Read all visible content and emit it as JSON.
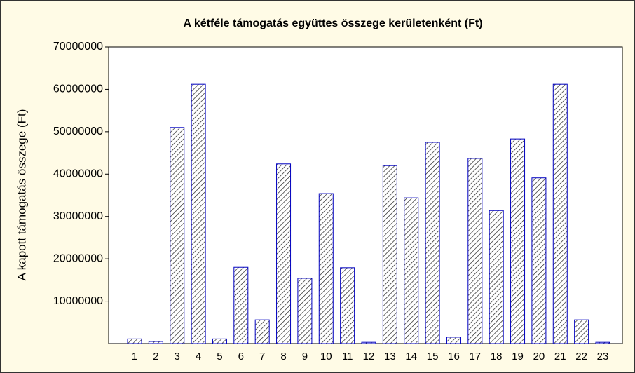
{
  "chart_data": {
    "type": "bar",
    "title": "A kétféle támogatás együttes összege kerületenként (Ft)",
    "ylabel": "A kapott támogatás összege (Ft)",
    "categories": [
      "1",
      "2",
      "3",
      "4",
      "5",
      "6",
      "7",
      "8",
      "9",
      "10",
      "11",
      "12",
      "13",
      "14",
      "15",
      "16",
      "17",
      "18",
      "19",
      "20",
      "21",
      "22",
      "23"
    ],
    "values": [
      1100000,
      500000,
      51000000,
      61200000,
      1100000,
      18000000,
      5600000,
      42400000,
      15400000,
      35400000,
      17900000,
      300000,
      42000000,
      34400000,
      47500000,
      1500000,
      43700000,
      31400000,
      48300000,
      39100000,
      61200000,
      5600000,
      300000
    ],
    "color": "#0000c0",
    "ylim": [
      0,
      70000000
    ],
    "yticks": [
      10000000,
      20000000,
      30000000,
      40000000,
      50000000,
      60000000,
      70000000
    ],
    "grid": false
  }
}
